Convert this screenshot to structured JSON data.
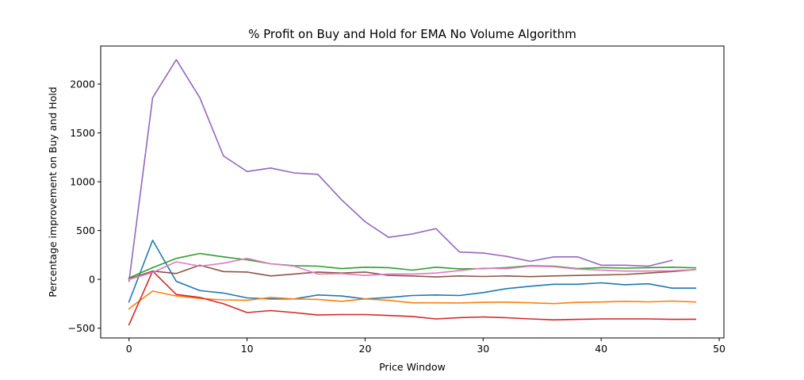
{
  "chart_data": {
    "type": "line",
    "title": "% Profit on Buy and Hold for EMA No Volume Algorithm",
    "xlabel": "Price Window",
    "ylabel": "Percentage improvement on Buy and Hold",
    "xlim": [
      -2.4,
      50.4
    ],
    "ylim": [
      -600,
      2390
    ],
    "xticks": [
      0,
      10,
      20,
      30,
      40,
      50
    ],
    "yticks": [
      -500,
      0,
      500,
      1000,
      1500,
      2000
    ],
    "grid": false,
    "legend": "none",
    "x": [
      0,
      2,
      4,
      6,
      8,
      10,
      12,
      14,
      16,
      18,
      20,
      22,
      24,
      26,
      28,
      30,
      32,
      34,
      36,
      38,
      40,
      42,
      44,
      46,
      48
    ],
    "series": [
      {
        "color": "#1f77b4",
        "values": [
          -230,
          400,
          -20,
          -115,
          -140,
          -190,
          -200,
          -200,
          -160,
          -170,
          -200,
          -185,
          -165,
          -160,
          -165,
          -135,
          -95,
          -70,
          -50,
          -50,
          -35,
          -55,
          -45,
          -90,
          -90
        ]
      },
      {
        "color": "#ff7f0e",
        "values": [
          -300,
          -120,
          -170,
          -195,
          -210,
          -215,
          -185,
          -200,
          -205,
          -225,
          -200,
          -215,
          -240,
          -240,
          -242,
          -235,
          -233,
          -240,
          -248,
          -235,
          -232,
          -225,
          -230,
          -222,
          -232
        ]
      },
      {
        "color": "#2ca02c",
        "values": [
          15,
          120,
          215,
          265,
          230,
          200,
          160,
          140,
          135,
          110,
          125,
          120,
          95,
          125,
          108,
          110,
          120,
          140,
          135,
          110,
          120,
          115,
          120,
          125,
          118
        ]
      },
      {
        "color": "#d62728",
        "values": [
          -465,
          85,
          -155,
          -185,
          -250,
          -340,
          -320,
          -340,
          -365,
          -360,
          -360,
          -370,
          -380,
          -405,
          -392,
          -385,
          -393,
          -405,
          -415,
          -410,
          -405,
          -405,
          -405,
          -410,
          -408
        ]
      },
      {
        "color": "#9467bd",
        "values": [
          -20,
          1860,
          2250,
          1860,
          1265,
          1105,
          1140,
          1090,
          1075,
          815,
          590,
          430,
          465,
          520,
          280,
          270,
          235,
          185,
          230,
          230,
          145,
          145,
          135,
          195,
          null
        ]
      },
      {
        "color": "#8c564b",
        "values": [
          5,
          85,
          60,
          145,
          80,
          75,
          35,
          55,
          75,
          65,
          75,
          40,
          35,
          25,
          35,
          30,
          35,
          28,
          35,
          40,
          45,
          50,
          65,
          80,
          100
        ]
      },
      {
        "color": "#e377c2",
        "values": [
          0,
          70,
          180,
          135,
          165,
          215,
          160,
          135,
          55,
          60,
          40,
          55,
          55,
          65,
          90,
          115,
          110,
          135,
          130,
          105,
          95,
          85,
          85,
          88,
          100
        ]
      }
    ]
  }
}
